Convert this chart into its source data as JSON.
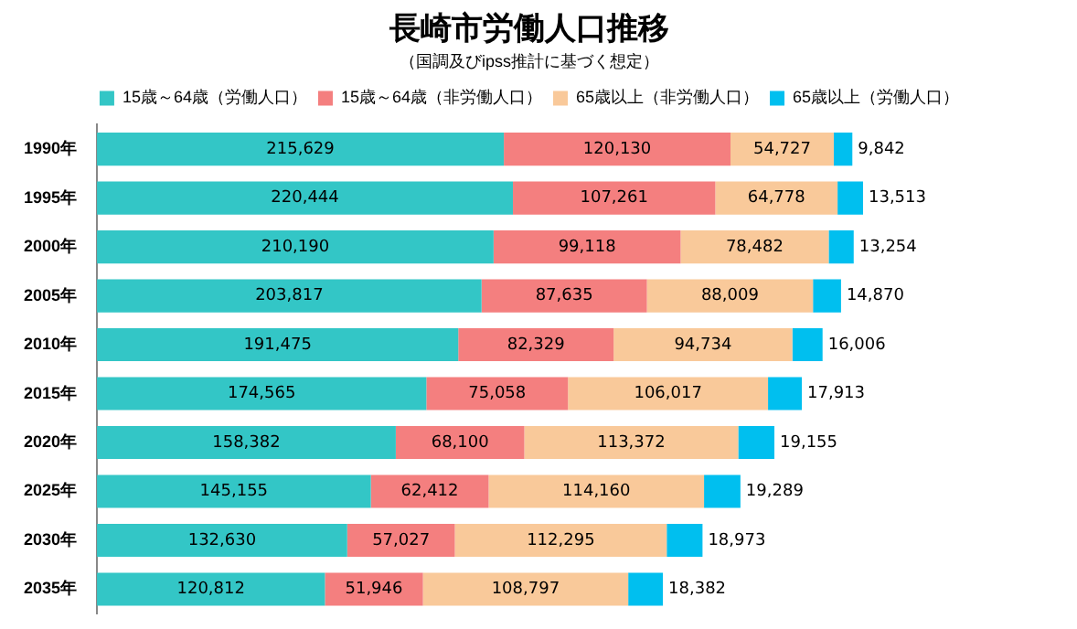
{
  "chart_data": {
    "type": "bar",
    "orientation": "horizontal",
    "stacked": true,
    "title": "長崎市労働人口推移",
    "subtitle": "（国調及びipss推計に基づく想定）",
    "categories": [
      "1990年",
      "1995年",
      "2000年",
      "2005年",
      "2010年",
      "2015年",
      "2020年",
      "2025年",
      "2030年",
      "2035年"
    ],
    "series": [
      {
        "name": "15歳～64歳（労働人口）",
        "color": "#33c6c6",
        "values": [
          215629,
          220444,
          210190,
          203817,
          191475,
          174565,
          158382,
          145155,
          132630,
          120812
        ],
        "value_labels": [
          "215,629",
          "220,444",
          "210,190",
          "203,817",
          "191,475",
          "174,565",
          "158,382",
          "145,155",
          "132,630",
          "120,812"
        ]
      },
      {
        "name": "15歳～64歳（非労働人口）",
        "color": "#f47f7f",
        "values": [
          120130,
          107261,
          99118,
          87635,
          82329,
          75058,
          68100,
          62412,
          57027,
          51946
        ],
        "value_labels": [
          "120,130",
          "107,261",
          "99,118",
          "87,635",
          "82,329",
          "75,058",
          "68,100",
          "62,412",
          "57,027",
          "51,946"
        ]
      },
      {
        "name": "65歳以上（非労働人口）",
        "color": "#f9c99a",
        "values": [
          54727,
          64778,
          78482,
          88009,
          94734,
          106017,
          113372,
          114160,
          112295,
          108797
        ],
        "value_labels": [
          "54,727",
          "64,778",
          "78,482",
          "88,009",
          "94,734",
          "106,017",
          "113,372",
          "114,160",
          "112,295",
          "108,797"
        ]
      },
      {
        "name": "65歳以上（労働人口）",
        "color": "#00bfef",
        "values": [
          9842,
          13513,
          13254,
          14870,
          16006,
          17913,
          19155,
          19289,
          18973,
          18382
        ],
        "value_labels": [
          "9,842",
          "13,513",
          "13,254",
          "14,870",
          "16,006",
          "17,913",
          "19,155",
          "19,289",
          "18,973",
          "18,382"
        ]
      }
    ],
    "legend": "top",
    "grid": false
  }
}
